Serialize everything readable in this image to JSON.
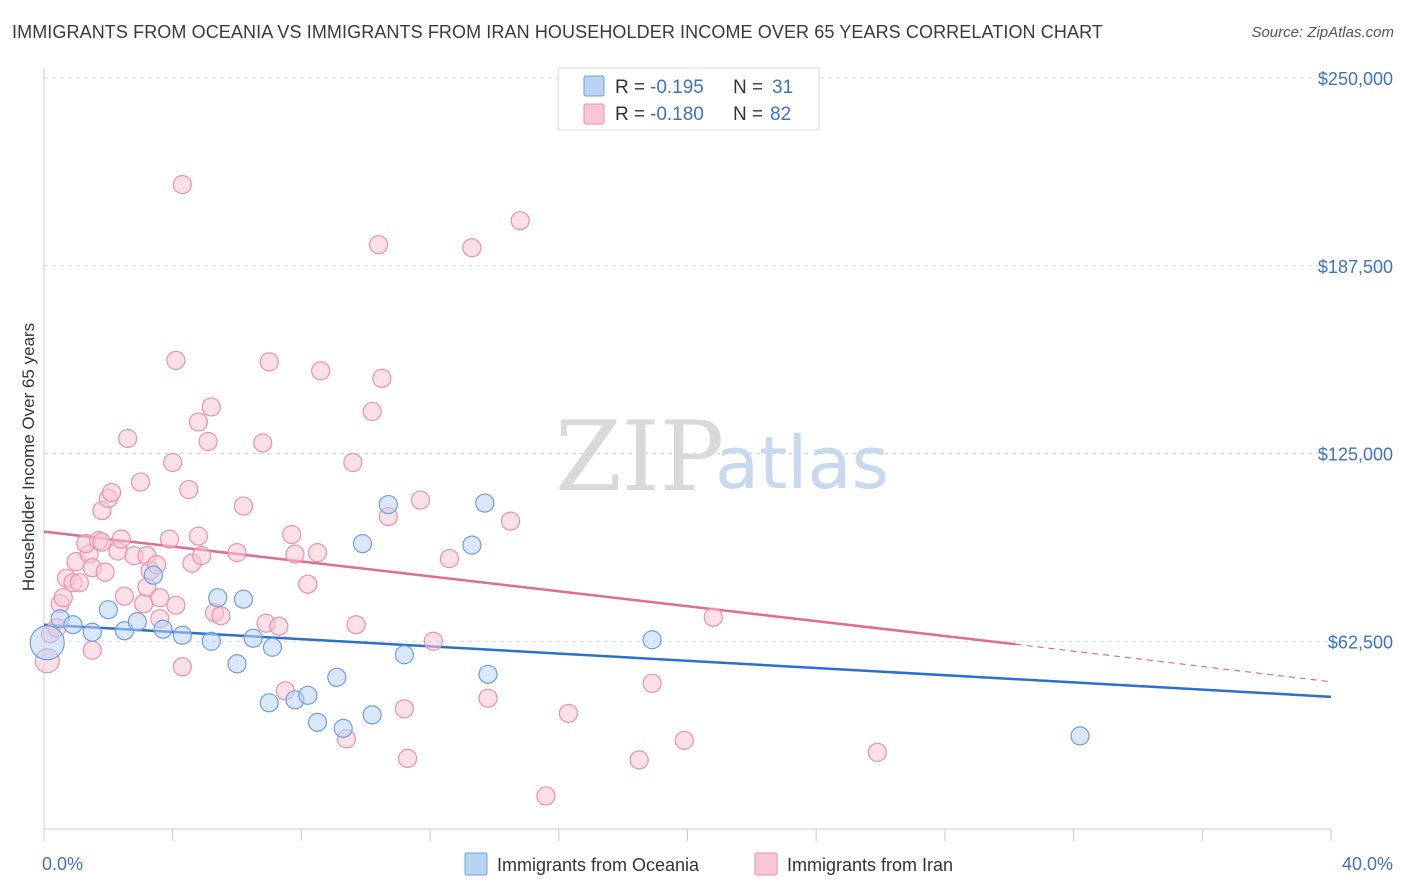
{
  "header": {
    "title": "IMMIGRANTS FROM OCEANIA VS IMMIGRANTS FROM IRAN HOUSEHOLDER INCOME OVER 65 YEARS CORRELATION CHART",
    "source": "Source: ZipAtlas.com"
  },
  "watermark": {
    "zip": "ZIP",
    "atlas": "atlas"
  },
  "colors": {
    "oceania_fill": "#b9d3f3",
    "oceania_stroke": "#6c9fe0",
    "oceania_line": "#2c6fcc",
    "iran_fill": "#f9c6d5",
    "iran_stroke": "#ec8fae",
    "iran_line": "#e06b93",
    "tick_label": "#3e72c4",
    "grid": "#d9d9d9"
  },
  "legend": {
    "rows": [
      {
        "r_label": "R =",
        "r_value": "-0.195",
        "n_label": "N =",
        "n_value": "31"
      },
      {
        "r_label": "R =",
        "r_value": "-0.180",
        "n_label": "N =",
        "n_value": "82"
      }
    ]
  },
  "chart_data": {
    "type": "scatter",
    "title": "IMMIGRANTS FROM OCEANIA VS IMMIGRANTS FROM IRAN HOUSEHOLDER INCOME OVER 65 YEARS CORRELATION CHART",
    "xlabel": "",
    "ylabel": "Householder Income Over 65 years",
    "xlim": [
      0,
      40
    ],
    "ylim": [
      0,
      250000
    ],
    "x_tick_labels": [
      "0.0%",
      "40.0%"
    ],
    "y_ticks": [
      62500,
      125000,
      187500,
      250000
    ],
    "y_tick_labels": [
      "$62,500",
      "$125,000",
      "$187,500",
      "$250,000"
    ],
    "grid": true,
    "legend_placement": "top-center",
    "series": [
      {
        "name": "Immigrants from Oceania",
        "r": -0.195,
        "n": 31,
        "trend": {
          "x": [
            0,
            40
          ],
          "y": [
            68000,
            44000
          ]
        },
        "points": [
          [
            0.1,
            62000
          ],
          [
            0.5,
            70000
          ],
          [
            0.9,
            68000
          ],
          [
            1.5,
            65500
          ],
          [
            2.0,
            73000
          ],
          [
            2.5,
            66000
          ],
          [
            2.9,
            69000
          ],
          [
            3.4,
            84500
          ],
          [
            3.7,
            66500
          ],
          [
            4.3,
            64500
          ],
          [
            5.4,
            77000
          ],
          [
            6.2,
            76500
          ],
          [
            5.2,
            62500
          ],
          [
            6.0,
            55000
          ],
          [
            6.5,
            63500
          ],
          [
            7.0,
            42000
          ],
          [
            7.1,
            60500
          ],
          [
            7.8,
            43000
          ],
          [
            8.2,
            44500
          ],
          [
            8.5,
            35500
          ],
          [
            9.1,
            50500
          ],
          [
            9.3,
            33500
          ],
          [
            9.9,
            95000
          ],
          [
            10.2,
            38000
          ],
          [
            10.7,
            108000
          ],
          [
            11.2,
            58000
          ],
          [
            13.3,
            94500
          ],
          [
            13.7,
            108500
          ],
          [
            13.8,
            51500
          ],
          [
            18.9,
            63000
          ],
          [
            32.2,
            31000
          ]
        ]
      },
      {
        "name": "Immigrants from Iran",
        "r": -0.18,
        "n": 82,
        "trend": {
          "x": [
            0,
            30.2
          ],
          "y": [
            99000,
            61500
          ]
        },
        "trend_dashed": {
          "x": [
            30.2,
            40
          ],
          "y": [
            61500,
            49000
          ]
        },
        "points": [
          [
            0.1,
            56000
          ],
          [
            0.2,
            65000
          ],
          [
            0.4,
            67000
          ],
          [
            0.5,
            75000
          ],
          [
            0.6,
            77000
          ],
          [
            0.7,
            83500
          ],
          [
            0.9,
            82000
          ],
          [
            1.0,
            89000
          ],
          [
            1.1,
            82000
          ],
          [
            1.4,
            91500
          ],
          [
            1.3,
            95000
          ],
          [
            1.5,
            59500
          ],
          [
            1.5,
            87000
          ],
          [
            1.7,
            96000
          ],
          [
            1.8,
            95500
          ],
          [
            1.9,
            85500
          ],
          [
            1.8,
            106000
          ],
          [
            2.0,
            110000
          ],
          [
            2.1,
            112000
          ],
          [
            2.3,
            92500
          ],
          [
            2.4,
            96500
          ],
          [
            2.5,
            77500
          ],
          [
            2.6,
            130000
          ],
          [
            2.8,
            91000
          ],
          [
            3.0,
            115500
          ],
          [
            3.1,
            75000
          ],
          [
            3.2,
            80500
          ],
          [
            3.2,
            91000
          ],
          [
            3.3,
            86000
          ],
          [
            3.5,
            88000
          ],
          [
            3.6,
            70000
          ],
          [
            3.6,
            77000
          ],
          [
            3.9,
            96500
          ],
          [
            4.0,
            122000
          ],
          [
            4.1,
            74500
          ],
          [
            4.1,
            156000
          ],
          [
            4.3,
            54000
          ],
          [
            4.3,
            214500
          ],
          [
            4.5,
            113000
          ],
          [
            4.6,
            88500
          ],
          [
            4.8,
            97500
          ],
          [
            4.8,
            135500
          ],
          [
            4.9,
            91000
          ],
          [
            5.1,
            129000
          ],
          [
            5.2,
            140500
          ],
          [
            5.3,
            72000
          ],
          [
            5.5,
            71000
          ],
          [
            6.2,
            107500
          ],
          [
            6.8,
            128500
          ],
          [
            6.9,
            68500
          ],
          [
            7.0,
            155500
          ],
          [
            7.3,
            67500
          ],
          [
            7.5,
            46000
          ],
          [
            7.7,
            98000
          ],
          [
            7.8,
            91500
          ],
          [
            8.2,
            81500
          ],
          [
            8.5,
            92000
          ],
          [
            8.6,
            152500
          ],
          [
            9.4,
            30000
          ],
          [
            9.6,
            122000
          ],
          [
            9.7,
            68000
          ],
          [
            10.2,
            139000
          ],
          [
            10.4,
            194500
          ],
          [
            10.7,
            104000
          ],
          [
            11.2,
            40000
          ],
          [
            11.3,
            23500
          ],
          [
            11.7,
            109500
          ],
          [
            12.1,
            62500
          ],
          [
            12.6,
            90000
          ],
          [
            13.3,
            193500
          ],
          [
            13.8,
            43500
          ],
          [
            14.5,
            102500
          ],
          [
            14.8,
            202500
          ],
          [
            15.6,
            11000
          ],
          [
            16.3,
            38500
          ],
          [
            18.5,
            23000
          ],
          [
            18.9,
            48500
          ],
          [
            19.9,
            29500
          ],
          [
            20.8,
            70500
          ],
          [
            25.9,
            25500
          ],
          [
            10.5,
            150000
          ],
          [
            6.0,
            92000
          ]
        ]
      }
    ]
  },
  "bottom_legend": {
    "items": [
      {
        "label": "Immigrants from Oceania"
      },
      {
        "label": "Immigrants from Iran"
      }
    ]
  }
}
